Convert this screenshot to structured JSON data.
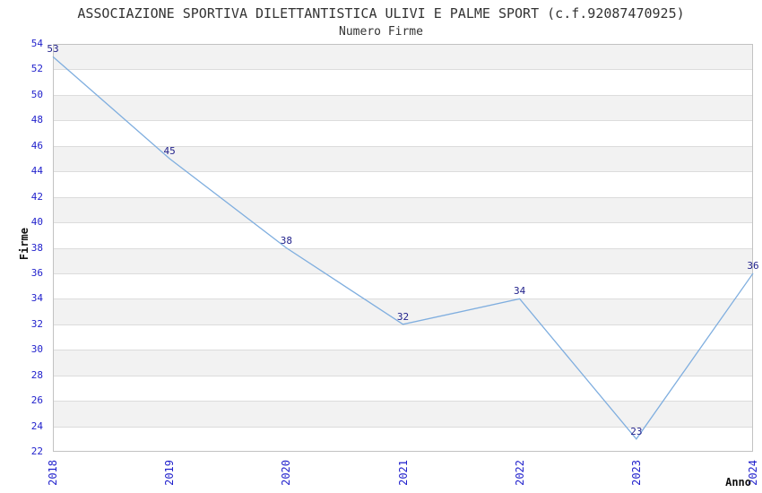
{
  "chart_data": {
    "type": "line",
    "title": "ASSOCIAZIONE SPORTIVA DILETTANTISTICA ULIVI E PALME SPORT (c.f.92087470925)",
    "subtitle": "Numero Firme",
    "xlabel": "Anno",
    "ylabel": "Firme",
    "x": [
      2018,
      2019,
      2020,
      2021,
      2022,
      2023,
      2024
    ],
    "values": [
      53,
      45,
      38,
      32,
      34,
      23,
      36
    ],
    "ylim": [
      22,
      54
    ],
    "ytick_step": 2,
    "grid": "horizontal bands, alternating fill every 2 units, gridline each 2 units",
    "legend": "none",
    "colors": {
      "line": "#7faedf",
      "tick_labels": "#2222cc",
      "data_labels": "#22228c",
      "band_fill": "#f2f2f2",
      "gridline": "#dcdcdc",
      "plot_border": "#c2c2c2",
      "title_text": "#333333",
      "axis_title_text": "#111111"
    }
  }
}
